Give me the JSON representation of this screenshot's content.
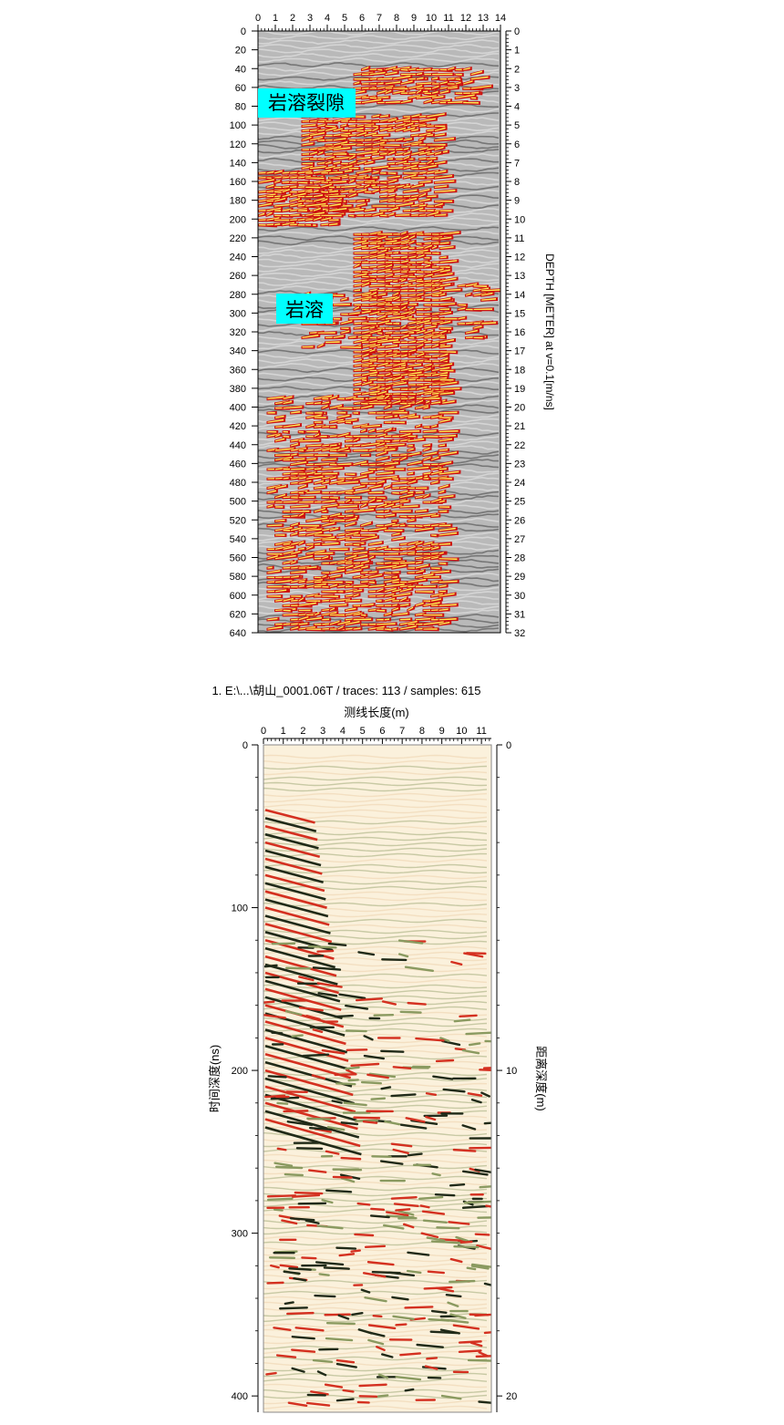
{
  "chart_data": [
    {
      "type": "heatmap",
      "title": "",
      "x_axis": {
        "label": "",
        "ticks": [
          0,
          1,
          2,
          3,
          4,
          5,
          6,
          7,
          8,
          9,
          10,
          11,
          12,
          13,
          14
        ],
        "range": [
          0,
          14
        ]
      },
      "y_axis_left": {
        "label": "",
        "ticks": [
          0,
          20,
          40,
          60,
          80,
          100,
          120,
          140,
          160,
          180,
          200,
          220,
          240,
          260,
          280,
          300,
          320,
          340,
          360,
          380,
          400,
          420,
          440,
          460,
          480,
          500,
          520,
          540,
          560,
          580,
          600,
          620,
          640
        ],
        "range": [
          0,
          640
        ]
      },
      "y_axis_right": {
        "label": "DEPTH [METER] at v=0.1[m/ns]",
        "ticks": [
          0,
          1,
          2,
          3,
          4,
          5,
          6,
          7,
          8,
          9,
          10,
          11,
          12,
          13,
          14,
          15,
          16,
          17,
          18,
          19,
          20,
          21,
          22,
          23,
          24,
          25,
          26,
          27,
          28,
          29,
          30,
          31,
          32
        ],
        "range": [
          0,
          32
        ]
      },
      "annotations": [
        {
          "text": "岩溶裂隙",
          "x": 0,
          "y": 75
        },
        {
          "text": "岩溶",
          "x": 1.1,
          "y": 298
        }
      ],
      "colors": {
        "background": "#b9b9b9",
        "dark": "#4a4a4a",
        "red": "#cc1010",
        "yellow": "#ffee55",
        "annotation_bg": "#00ffff"
      }
    },
    {
      "type": "heatmap",
      "title": "1. E:\\...\\胡山_0001.06T / traces: 113 / samples: 615",
      "x_axis": {
        "label": "测线长度(m)",
        "ticks": [
          0,
          1,
          2,
          3,
          4,
          5,
          6,
          7,
          8,
          9,
          10,
          11
        ],
        "range": [
          0,
          11.5
        ]
      },
      "y_axis_left": {
        "label": "时间深度(ns)",
        "ticks": [
          0,
          100,
          200,
          300,
          400
        ],
        "range": [
          0,
          410
        ]
      },
      "y_axis_right": {
        "label": "距离深度(m)",
        "ticks": [
          0,
          10,
          20
        ],
        "range": [
          0,
          20.5
        ]
      },
      "colors": {
        "background": "#fbf1dc",
        "red": "#d43020",
        "dark": "#202a18",
        "green": "#8a9a60",
        "tan": "#e8caa0"
      }
    }
  ]
}
